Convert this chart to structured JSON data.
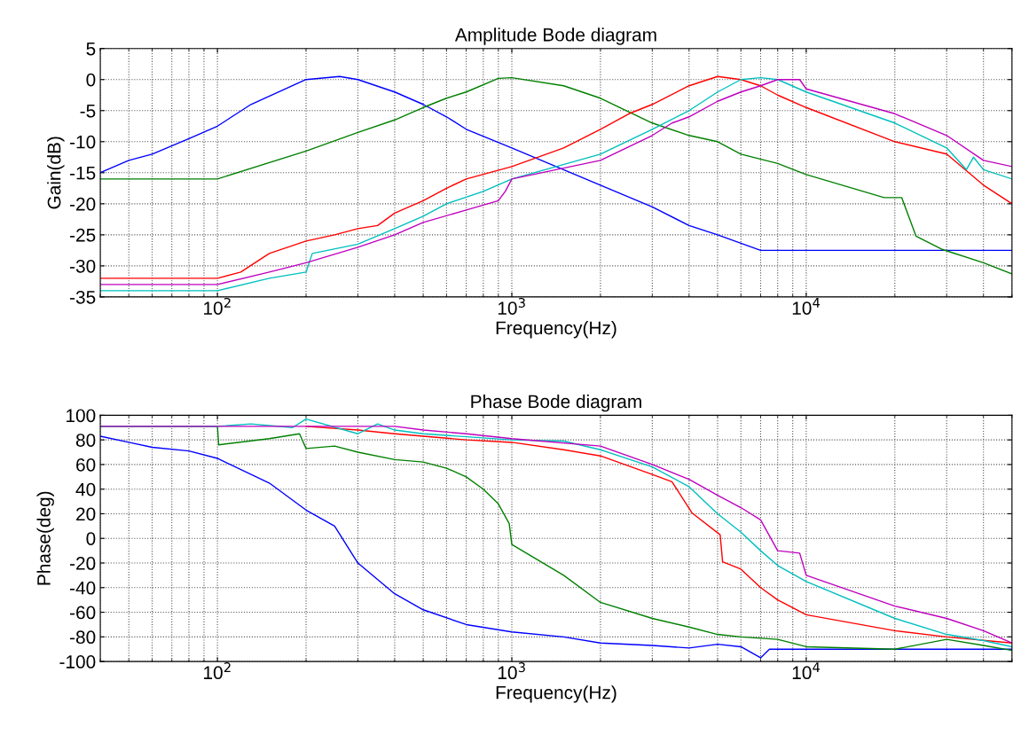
{
  "chart_data": [
    {
      "type": "line",
      "title": "Amplitude Bode diagram",
      "xlabel": "Frequency(Hz)",
      "ylabel": "Gain(dB)",
      "log": "x",
      "grid": true,
      "line_style": "solid",
      "marker": "none",
      "xlim": [
        40,
        50000
      ],
      "xticks": [
        {
          "value": 100,
          "label": "10$^{2}$"
        },
        {
          "value": 1000,
          "label": "10$^{3}$"
        },
        {
          "value": 10000,
          "label": "10$^{4}$"
        }
      ],
      "ylim": [
        -35,
        5
      ],
      "yticks": [
        -35,
        -30,
        -25,
        -20,
        -15,
        -10,
        -5,
        0,
        5
      ],
      "series": [
        {
          "color": "#0000ff",
          "x": [
            40,
            50,
            60,
            80,
            100,
            130,
            200,
            260,
            300,
            400,
            500,
            600,
            700,
            1000,
            2000,
            3000,
            4000,
            5000,
            7000,
            50000
          ],
          "values": [
            -15,
            -13,
            -12,
            -9.5,
            -7.5,
            -4,
            0,
            0.5,
            0,
            -2,
            -4,
            -6,
            -8,
            -11,
            -17,
            -20.5,
            -23.5,
            -25,
            -27.5,
            -27.5
          ]
        },
        {
          "color": "#008000",
          "x": [
            40,
            100,
            200,
            300,
            400,
            500,
            600,
            700,
            900,
            1000,
            1500,
            2000,
            3000,
            4000,
            5000,
            6000,
            8000,
            10000,
            18400,
            21100,
            23600,
            28800,
            40000,
            50000
          ],
          "values": [
            -16,
            -16,
            -11.5,
            -8.5,
            -6.5,
            -4.5,
            -3,
            -2,
            0.2,
            0.3,
            -1,
            -3,
            -7,
            -9,
            -10,
            -12,
            -13.5,
            -15.3,
            -19,
            -19,
            -25.2,
            -27.3,
            -29.5,
            -31.3
          ]
        },
        {
          "color": "#ff0000",
          "x": [
            40,
            100,
            120,
            150,
            200,
            250,
            300,
            350,
            400,
            500,
            600,
            700,
            1000,
            1500,
            2000,
            2500,
            3000,
            4000,
            5000,
            6000,
            7000,
            8000,
            10000,
            20000,
            30000,
            40000,
            50000
          ],
          "values": [
            -32,
            -32,
            -31,
            -28,
            -26,
            -25,
            -24,
            -23.5,
            -21.5,
            -19.5,
            -17.5,
            -16,
            -14,
            -11,
            -8,
            -5.5,
            -4,
            -1,
            0.5,
            0,
            -1,
            -2.5,
            -4.5,
            -10,
            -12,
            -17,
            -20
          ]
        },
        {
          "color": "#00bfbf",
          "x": [
            40,
            100,
            150,
            200,
            210,
            300,
            400,
            500,
            600,
            800,
            1000,
            2000,
            3000,
            4000,
            5000,
            6000,
            7000,
            8000,
            10000,
            20000,
            30000,
            35000,
            37000,
            40000,
            50000
          ],
          "values": [
            -34,
            -34,
            -32,
            -31,
            -28,
            -26.5,
            -24,
            -22,
            -20,
            -18,
            -16,
            -12,
            -8,
            -5,
            -2,
            0,
            0.3,
            0,
            -2,
            -7,
            -11,
            -14.5,
            -12.5,
            -14.5,
            -16
          ]
        },
        {
          "color": "#bf00bf",
          "x": [
            40,
            100,
            150,
            200,
            300,
            400,
            500,
            700,
            900,
            950,
            1000,
            2000,
            3000,
            3500,
            4000,
            5000,
            6000,
            7000,
            8000,
            9500,
            10000,
            20000,
            30000,
            40000,
            50000
          ],
          "values": [
            -33,
            -33,
            -31,
            -29.5,
            -27,
            -25,
            -23,
            -21,
            -19.5,
            -18,
            -16,
            -13,
            -9,
            -7,
            -6,
            -3.5,
            -2,
            -1,
            0,
            0,
            -1.5,
            -5.5,
            -9,
            -13,
            -14
          ]
        }
      ]
    },
    {
      "type": "line",
      "title": "Phase Bode diagram",
      "xlabel": "Frequency(Hz)",
      "ylabel": "Phase(deg)",
      "log": "x",
      "grid": true,
      "line_style": "solid",
      "marker": "none",
      "xlim": [
        40,
        50000
      ],
      "xticks": [
        {
          "value": 100,
          "label": "10$^{2}$"
        },
        {
          "value": 1000,
          "label": "10$^{3}$"
        },
        {
          "value": 10000,
          "label": "10$^{4}$"
        }
      ],
      "ylim": [
        -100,
        100
      ],
      "yticks": [
        -100,
        -80,
        -60,
        -40,
        -20,
        0,
        20,
        40,
        60,
        80,
        100
      ],
      "series": [
        {
          "color": "#0000ff",
          "x": [
            40,
            50,
            60,
            80,
            100,
            150,
            200,
            250,
            300,
            400,
            500,
            700,
            1000,
            1500,
            2000,
            3000,
            4000,
            5000,
            6000,
            7000,
            7500,
            50000
          ],
          "values": [
            83,
            78,
            74,
            71,
            65,
            45,
            23,
            10,
            -20,
            -45,
            -58,
            -70,
            -76,
            -80,
            -85,
            -87,
            -89,
            -86,
            -88,
            -97,
            -90,
            -90
          ]
        },
        {
          "color": "#008000",
          "x": [
            40,
            100,
            101,
            150,
            190,
            200,
            250,
            300,
            400,
            500,
            600,
            700,
            800,
            900,
            980,
            1000,
            1500,
            2000,
            3000,
            4000,
            5000,
            6000,
            8000,
            10000,
            20000,
            30000,
            40000,
            50000
          ],
          "values": [
            91,
            91,
            76,
            81,
            85,
            73,
            75,
            70,
            64,
            62,
            57,
            50,
            40,
            28,
            12,
            -5,
            -30,
            -52,
            -65,
            -72,
            -78,
            -80,
            -82,
            -88,
            -90,
            -82,
            -87,
            -91
          ]
        },
        {
          "color": "#ff0000",
          "x": [
            200,
            300,
            400,
            500,
            700,
            1000,
            1500,
            2000,
            3000,
            3500,
            4100,
            5100,
            5200,
            6000,
            7000,
            8000,
            10000,
            20000,
            30000,
            50000
          ],
          "values": [
            91,
            88,
            85,
            83,
            80,
            78,
            72,
            67,
            52,
            46,
            20.5,
            3,
            -19,
            -25,
            -40,
            -50,
            -62,
            -75,
            -80,
            -85
          ]
        },
        {
          "color": "#00bfbf",
          "x": [
            40,
            100,
            130,
            180,
            200,
            300,
            350,
            400,
            500,
            1000,
            1500,
            2000,
            3000,
            4000,
            5000,
            6000,
            7000,
            8000,
            10000,
            20000,
            30000,
            40000,
            50000
          ],
          "values": [
            91,
            91,
            93,
            90,
            97,
            85,
            93,
            88,
            85,
            80,
            79,
            72,
            58,
            42,
            20,
            5,
            -10,
            -22,
            -35,
            -65,
            -78,
            -83,
            -88
          ]
        },
        {
          "color": "#bf00bf",
          "x": [
            40,
            400,
            500,
            700,
            1000,
            2000,
            3000,
            4000,
            5000,
            6000,
            7000,
            8000,
            9500,
            10000,
            20000,
            30000,
            40000,
            50000
          ],
          "values": [
            91,
            91,
            88,
            85,
            81,
            75,
            60,
            48,
            35,
            25,
            15,
            -10,
            -12,
            -30,
            -55,
            -65,
            -75,
            -85
          ]
        }
      ]
    }
  ]
}
